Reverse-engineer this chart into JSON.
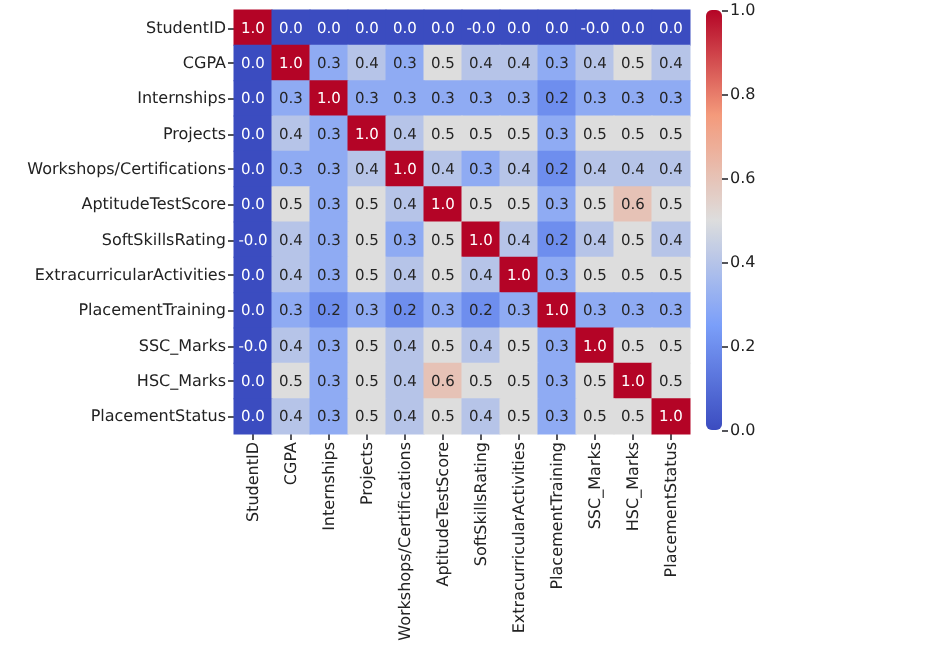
{
  "chart_data": {
    "type": "heatmap",
    "categories": [
      "StudentID",
      "CGPA",
      "Internships",
      "Projects",
      "Workshops/Certifications",
      "AptitudeTestScore",
      "SoftSkillsRating",
      "ExtracurricularActivities",
      "PlacementTraining",
      "SSC_Marks",
      "HSC_Marks",
      "PlacementStatus"
    ],
    "y_categories": [
      "StudentID",
      "CGPA",
      "Internships",
      "Projects",
      "Workshops/Certifications",
      "AptitudeTestScore",
      "SoftSkillsRating",
      "ExtracurricularActivities",
      "PlacementTraining",
      "SSC_Marks",
      "HSC_Marks",
      "PlacementStatus"
    ],
    "cells": [
      [
        1.0,
        0.0,
        0.0,
        0.0,
        0.0,
        0.0,
        0.0,
        0.0,
        0.0,
        0.0,
        0.0,
        0.0
      ],
      [
        0.0,
        1.0,
        0.3,
        0.4,
        0.3,
        0.5,
        0.4,
        0.4,
        0.3,
        0.4,
        0.5,
        0.4
      ],
      [
        0.0,
        0.3,
        1.0,
        0.3,
        0.3,
        0.3,
        0.3,
        0.3,
        0.2,
        0.3,
        0.3,
        0.3
      ],
      [
        0.0,
        0.4,
        0.3,
        1.0,
        0.4,
        0.5,
        0.5,
        0.5,
        0.3,
        0.5,
        0.5,
        0.5
      ],
      [
        0.0,
        0.3,
        0.3,
        0.4,
        1.0,
        0.4,
        0.3,
        0.4,
        0.2,
        0.4,
        0.4,
        0.4
      ],
      [
        0.0,
        0.5,
        0.3,
        0.5,
        0.4,
        1.0,
        0.5,
        0.5,
        0.3,
        0.5,
        0.6,
        0.5
      ],
      [
        0.0,
        0.4,
        0.3,
        0.5,
        0.3,
        0.5,
        1.0,
        0.4,
        0.2,
        0.4,
        0.5,
        0.4
      ],
      [
        0.0,
        0.4,
        0.3,
        0.5,
        0.4,
        0.5,
        0.4,
        1.0,
        0.3,
        0.5,
        0.5,
        0.5
      ],
      [
        0.0,
        0.3,
        0.2,
        0.3,
        0.2,
        0.3,
        0.2,
        0.3,
        1.0,
        0.3,
        0.3,
        0.3
      ],
      [
        0.0,
        0.4,
        0.3,
        0.5,
        0.4,
        0.5,
        0.4,
        0.5,
        0.3,
        1.0,
        0.5,
        0.5
      ],
      [
        0.0,
        0.5,
        0.3,
        0.5,
        0.4,
        0.6,
        0.5,
        0.5,
        0.3,
        0.5,
        1.0,
        0.5
      ],
      [
        0.0,
        0.4,
        0.3,
        0.5,
        0.4,
        0.5,
        0.4,
        0.5,
        0.3,
        0.5,
        0.5,
        1.0
      ]
    ],
    "cell_labels": [
      [
        "1.0",
        "0.0",
        "0.0",
        "0.0",
        "0.0",
        "0.0",
        "-0.0",
        "0.0",
        "0.0",
        "-0.0",
        "0.0",
        "0.0"
      ],
      [
        "0.0",
        "1.0",
        "0.3",
        "0.4",
        "0.3",
        "0.5",
        "0.4",
        "0.4",
        "0.3",
        "0.4",
        "0.5",
        "0.4"
      ],
      [
        "0.0",
        "0.3",
        "1.0",
        "0.3",
        "0.3",
        "0.3",
        "0.3",
        "0.3",
        "0.2",
        "0.3",
        "0.3",
        "0.3"
      ],
      [
        "0.0",
        "0.4",
        "0.3",
        "1.0",
        "0.4",
        "0.5",
        "0.5",
        "0.5",
        "0.3",
        "0.5",
        "0.5",
        "0.5"
      ],
      [
        "0.0",
        "0.3",
        "0.3",
        "0.4",
        "1.0",
        "0.4",
        "0.3",
        "0.4",
        "0.2",
        "0.4",
        "0.4",
        "0.4"
      ],
      [
        "0.0",
        "0.5",
        "0.3",
        "0.5",
        "0.4",
        "1.0",
        "0.5",
        "0.5",
        "0.3",
        "0.5",
        "0.6",
        "0.5"
      ],
      [
        "-0.0",
        "0.4",
        "0.3",
        "0.5",
        "0.3",
        "0.5",
        "1.0",
        "0.4",
        "0.2",
        "0.4",
        "0.5",
        "0.4"
      ],
      [
        "0.0",
        "0.4",
        "0.3",
        "0.5",
        "0.4",
        "0.5",
        "0.4",
        "1.0",
        "0.3",
        "0.5",
        "0.5",
        "0.5"
      ],
      [
        "0.0",
        "0.3",
        "0.2",
        "0.3",
        "0.2",
        "0.3",
        "0.2",
        "0.3",
        "1.0",
        "0.3",
        "0.3",
        "0.3"
      ],
      [
        "-0.0",
        "0.4",
        "0.3",
        "0.5",
        "0.4",
        "0.5",
        "0.4",
        "0.5",
        "0.3",
        "1.0",
        "0.5",
        "0.5"
      ],
      [
        "0.0",
        "0.5",
        "0.3",
        "0.5",
        "0.4",
        "0.6",
        "0.5",
        "0.5",
        "0.3",
        "0.5",
        "1.0",
        "0.5"
      ],
      [
        "0.0",
        "0.4",
        "0.3",
        "0.5",
        "0.4",
        "0.5",
        "0.4",
        "0.5",
        "0.3",
        "0.5",
        "0.5",
        "1.0"
      ]
    ],
    "clim": [
      0,
      1
    ],
    "cticks": [
      {
        "value": 0,
        "label": "0.0"
      },
      {
        "value": 0.2,
        "label": "0.2"
      },
      {
        "value": 0.4,
        "label": "0.4"
      },
      {
        "value": 0.6,
        "label": "0.6"
      },
      {
        "value": 0.8,
        "label": "0.8"
      },
      {
        "value": 1.0,
        "label": "1.0"
      }
    ]
  }
}
